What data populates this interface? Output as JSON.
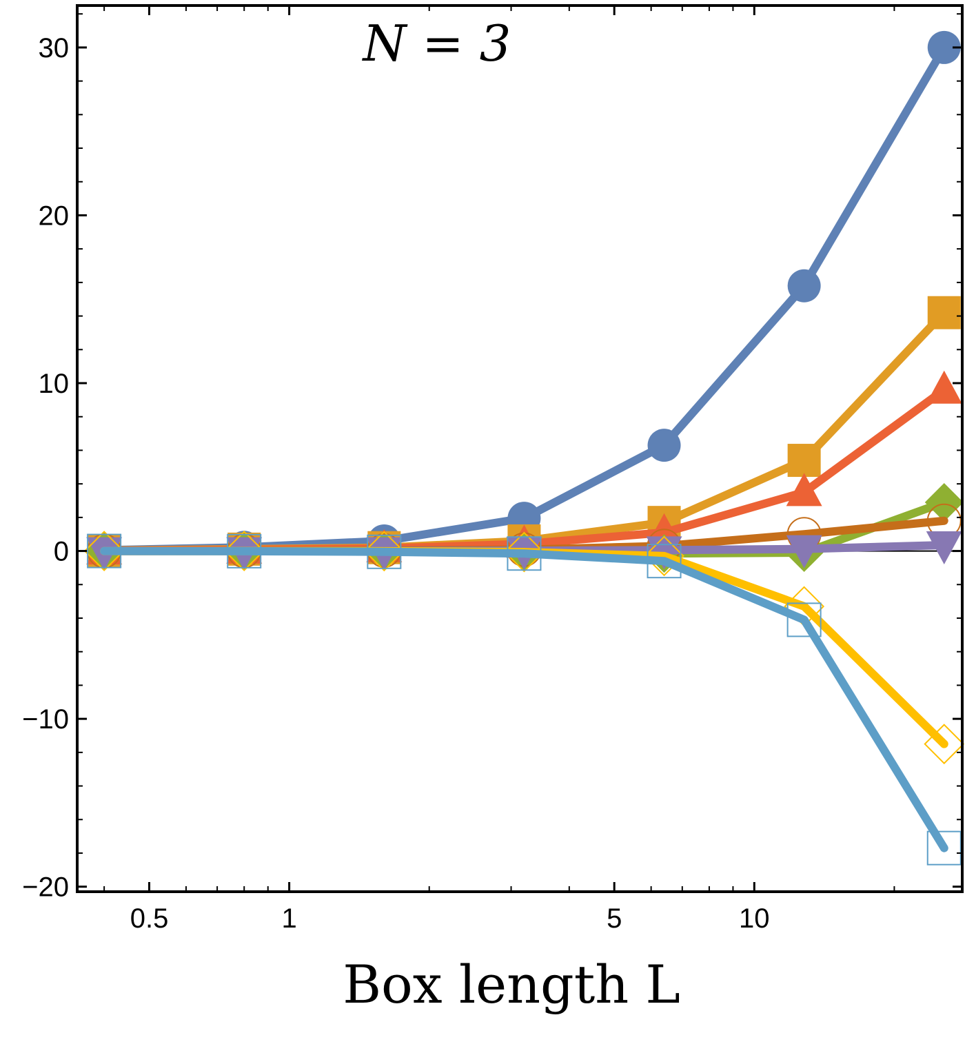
{
  "chart_data": {
    "type": "line",
    "title": "",
    "annotation": "N = 3",
    "xlabel": "Box length L",
    "ylabel": "",
    "xscale": "log",
    "xlim": [
      0.35,
      28
    ],
    "ylim": [
      -20.3,
      32.5
    ],
    "grid": false,
    "legend": "none",
    "x": [
      0.4,
      0.8,
      1.6,
      3.2,
      6.4,
      12.8,
      25.6
    ],
    "x_ticks": [
      {
        "value": 0.5,
        "label": "0.5"
      },
      {
        "value": 1,
        "label": "1"
      },
      {
        "value": 5,
        "label": "5"
      },
      {
        "value": 10,
        "label": "10"
      }
    ],
    "y_ticks": [
      {
        "value": -20,
        "label": "−20"
      },
      {
        "value": -10,
        "label": "−10"
      },
      {
        "value": 0,
        "label": "0"
      },
      {
        "value": 10,
        "label": "10"
      },
      {
        "value": 20,
        "label": "20"
      },
      {
        "value": 30,
        "label": "30"
      }
    ],
    "series": [
      {
        "color": "#5E81B5",
        "marker": "circle",
        "filled": true,
        "values": [
          0.05,
          0.22,
          0.6,
          1.95,
          6.3,
          15.8,
          30.0
        ]
      },
      {
        "color": "#E19C24",
        "marker": "square",
        "filled": true,
        "values": [
          0.03,
          0.11,
          0.2,
          0.6,
          1.7,
          5.4,
          14.2
        ]
      },
      {
        "color": "#EC6235",
        "marker": "triangle-up",
        "filled": true,
        "values": [
          0.02,
          0.07,
          0.15,
          0.42,
          1.1,
          3.5,
          9.6
        ]
      },
      {
        "color": "#8FB032",
        "marker": "diamond",
        "filled": true,
        "values": [
          0.0,
          0.0,
          -0.02,
          -0.05,
          -0.15,
          -0.1,
          2.9
        ]
      },
      {
        "color": "#C56E1A",
        "marker": "circle",
        "filled": false,
        "values": [
          0.0,
          0.01,
          0.03,
          0.08,
          0.3,
          1.0,
          1.8
        ]
      },
      {
        "color": "#8778B3",
        "marker": "triangle-down",
        "filled": true,
        "values": [
          0.0,
          0.0,
          0.0,
          0.02,
          0.05,
          0.12,
          0.35
        ]
      },
      {
        "color": "#FFBF00",
        "marker": "diamond",
        "filled": false,
        "values": [
          0.0,
          0.0,
          -0.01,
          -0.06,
          -0.3,
          -3.3,
          -11.5
        ]
      },
      {
        "color": "#5D9EC7",
        "marker": "square",
        "filled": false,
        "values": [
          0.0,
          -0.01,
          -0.05,
          -0.15,
          -0.6,
          -4.1,
          -17.7
        ]
      }
    ]
  }
}
